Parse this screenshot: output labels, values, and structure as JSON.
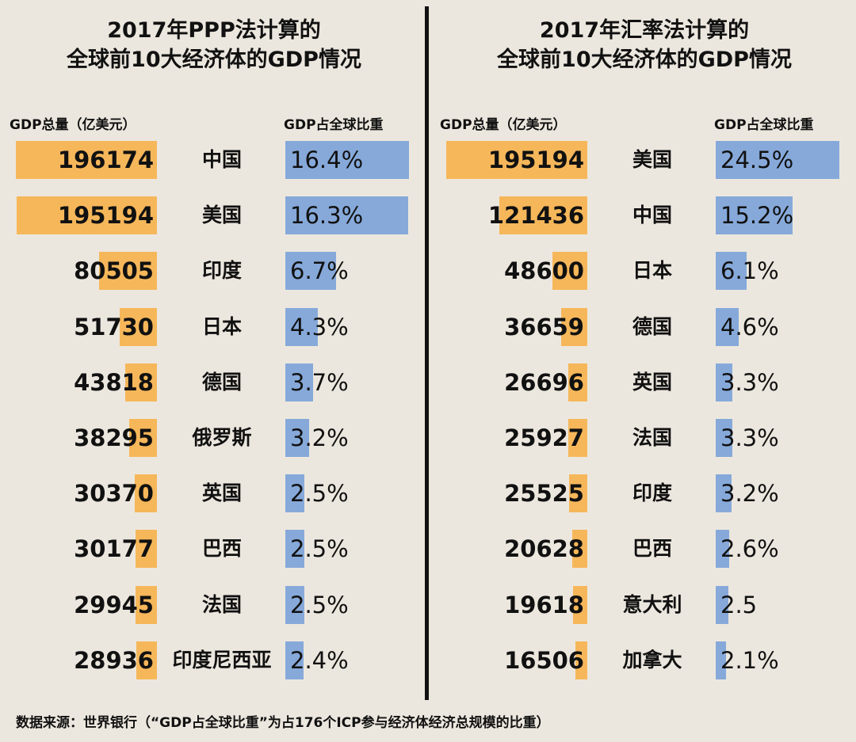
{
  "chart_data": [
    {
      "type": "bar",
      "title_lines": [
        "2017年PPP法计算的",
        "全球前10大经济体的GDP情况"
      ],
      "gdp_header": "GDP总量（亿美元）",
      "share_header": "GDP占全球比重",
      "categories": [
        "中国",
        "美国",
        "印度",
        "日本",
        "德国",
        "俄罗斯",
        "英国",
        "巴西",
        "法国",
        "印度尼西亚"
      ],
      "gdp_labels": [
        "196174",
        "195194",
        "80505",
        "51730",
        "43818",
        "38295",
        "30370",
        "30177",
        "29945",
        "28936"
      ],
      "gdp_values": [
        196174,
        195194,
        80505,
        51730,
        43818,
        38295,
        30370,
        30177,
        29945,
        28936
      ],
      "share_labels": [
        "16.4%",
        "16.3%",
        "6.7%",
        "4.3%",
        "3.7%",
        "3.2%",
        "2.5%",
        "2.5%",
        "2.5%",
        "2.4%"
      ],
      "share_values": [
        16.4,
        16.3,
        6.7,
        4.3,
        3.7,
        3.2,
        2.5,
        2.5,
        2.5,
        2.4
      ]
    },
    {
      "type": "bar",
      "title_lines": [
        "2017年汇率法计算的",
        "全球前10大经济体的GDP情况"
      ],
      "gdp_header": "GDP总量（亿美元）",
      "share_header": "GDP占全球比重",
      "categories": [
        "美国",
        "中国",
        "日本",
        "德国",
        "英国",
        "法国",
        "印度",
        "巴西",
        "意大利",
        "加拿大"
      ],
      "gdp_labels": [
        "195194",
        "121436",
        "48600",
        "36659",
        "26696",
        "25927",
        "25525",
        "20628",
        "19618",
        "16506"
      ],
      "gdp_values": [
        195194,
        121436,
        48600,
        36659,
        26696,
        25927,
        25525,
        20628,
        19618,
        16506
      ],
      "share_labels": [
        "24.5%",
        "15.2%",
        "6.1%",
        "4.6%",
        "3.3%",
        "3.3%",
        "3.2%",
        "2.6%",
        "2.5",
        "2.1%"
      ],
      "share_values": [
        24.5,
        15.2,
        6.1,
        4.6,
        3.3,
        3.3,
        3.2,
        2.6,
        2.5,
        2.1
      ]
    }
  ],
  "footer": "数据来源：世界银行（“GDP占全球比重”为占176个ICP参与经济体经济总规模的比重）",
  "colors": {
    "background": "#ece7de",
    "gdp_bar": "#f6b75a",
    "share_bar": "#86a9da",
    "divider": "#111111"
  }
}
